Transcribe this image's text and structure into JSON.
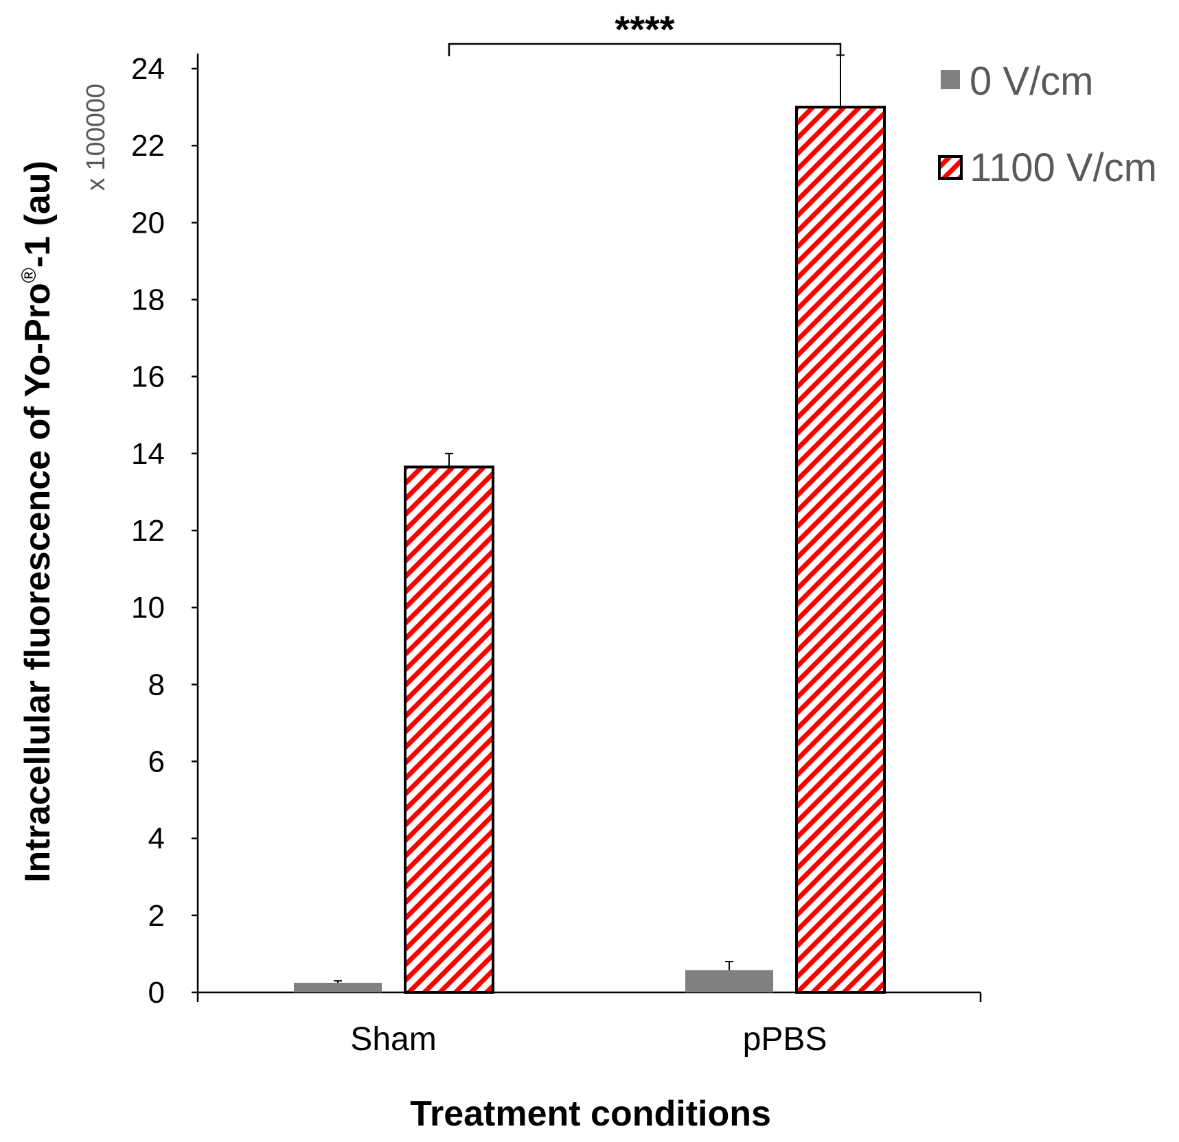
{
  "chart_data": {
    "type": "bar",
    "title": "",
    "xlabel": "Treatment conditions",
    "ylabel_main": "Intracellular fluorescence of Yo-Pro",
    "ylabel_sup": "®",
    "ylabel_tail": "-1 (au)",
    "y_multiplier": "x 100000",
    "ylim": [
      0,
      24
    ],
    "y_ticks": [
      "0",
      "2",
      "4",
      "6",
      "8",
      "10",
      "12",
      "14",
      "16",
      "18",
      "20",
      "22",
      "24"
    ],
    "categories": [
      "Sham",
      "pPBS"
    ],
    "series": [
      {
        "name": "0 V/cm",
        "values": [
          0.25,
          0.58
        ],
        "errors": [
          0.05,
          0.22
        ],
        "color": "#808080",
        "pattern": "solid"
      },
      {
        "name": "1100 V/cm",
        "values": [
          13.65,
          23.0
        ],
        "errors": [
          0.35,
          1.35
        ],
        "color": "#ff0000",
        "pattern": "diagonal-stripes"
      }
    ],
    "significance": {
      "label": "****",
      "from_category": 0,
      "to_category": 1,
      "series": "1100 V/cm"
    },
    "legend_position": "top-right"
  }
}
